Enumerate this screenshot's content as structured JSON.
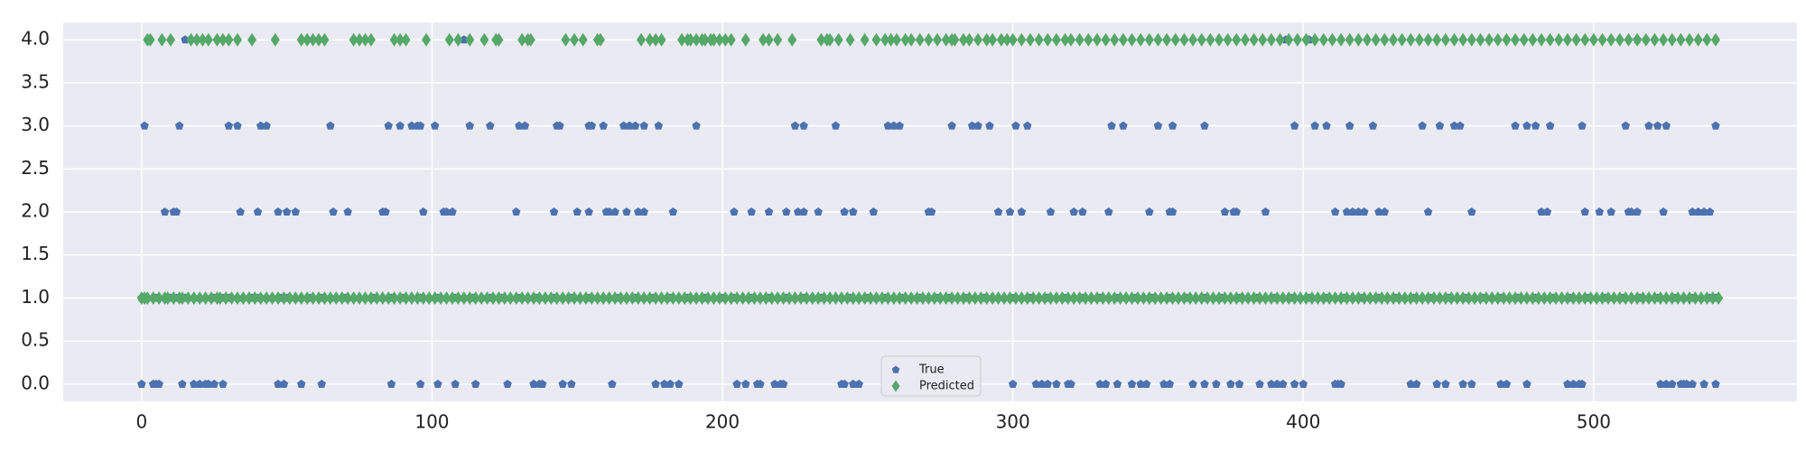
{
  "chart_data": {
    "type": "scatter",
    "title": "",
    "xlabel": "",
    "ylabel": "",
    "xlim": [
      -27,
      570
    ],
    "ylim": [
      -0.2,
      4.2
    ],
    "x_ticks": [
      0,
      100,
      200,
      300,
      400,
      500
    ],
    "x_tick_labels": [
      "0",
      "100",
      "200",
      "300",
      "400",
      "500"
    ],
    "y_ticks": [
      0.0,
      0.5,
      1.0,
      1.5,
      2.0,
      2.5,
      3.0,
      3.5,
      4.0
    ],
    "y_tick_labels": [
      "0.0",
      "0.5",
      "1.0",
      "1.5",
      "2.0",
      "2.5",
      "3.0",
      "3.5",
      "4.0"
    ],
    "grid": true,
    "legend_position": "bottom-center",
    "background_color": "#eaeaf2",
    "grid_color": "#ffffff",
    "series": [
      {
        "name": "True",
        "marker": "pentagon",
        "color": "#4c72b0",
        "points": {
          "4": [
            15,
            111,
            394,
            402,
            515
          ],
          "3": [
            1,
            13,
            30,
            33,
            41,
            43,
            65,
            85,
            89,
            93,
            95,
            96,
            101,
            113,
            120,
            130,
            132,
            143,
            144,
            154,
            155,
            159,
            166,
            168,
            170,
            173,
            178,
            191,
            225,
            228,
            239,
            257,
            259,
            261,
            279,
            286,
            288,
            292,
            301,
            305,
            334,
            338,
            350,
            355,
            366,
            397,
            404,
            408,
            416,
            424,
            441,
            447,
            452,
            454,
            473,
            477,
            480,
            485,
            496,
            511,
            519,
            522,
            525,
            542
          ],
          "2": [
            8,
            11,
            12,
            34,
            40,
            47,
            50,
            53,
            66,
            71,
            83,
            84,
            97,
            104,
            105,
            107,
            129,
            142,
            150,
            154,
            160,
            161,
            163,
            167,
            171,
            173,
            183,
            204,
            210,
            216,
            222,
            226,
            228,
            233,
            242,
            245,
            252,
            271,
            272,
            295,
            299,
            303,
            313,
            321,
            324,
            333,
            347,
            354,
            355,
            373,
            376,
            377,
            387,
            411,
            415,
            417,
            419,
            421,
            426,
            428,
            443,
            458,
            482,
            484,
            497,
            502,
            506,
            512,
            513,
            515,
            524,
            534,
            536,
            538,
            540
          ],
          "1": [
            0,
            2,
            5,
            8,
            10,
            12,
            15,
            18,
            20,
            22,
            25,
            28,
            30,
            33,
            35,
            38,
            40,
            43,
            45,
            48,
            50,
            53,
            55,
            58,
            62,
            65,
            67,
            70,
            73,
            77,
            80,
            83,
            86,
            90,
            93,
            96,
            99,
            102,
            105,
            108,
            111,
            114,
            117,
            120,
            124,
            127,
            130,
            133,
            136,
            139,
            142,
            145,
            148,
            151,
            154,
            157,
            161,
            164,
            167,
            170,
            173,
            176,
            179,
            182,
            185,
            188,
            191,
            194,
            197,
            200,
            204,
            207,
            210,
            213,
            216,
            219,
            222,
            225,
            228,
            231,
            234,
            237,
            241,
            244,
            247,
            250,
            253,
            256,
            259,
            262,
            265,
            268,
            271,
            274,
            278,
            281,
            284,
            287,
            290,
            293,
            297,
            300,
            303,
            306,
            309,
            312,
            315,
            318,
            321,
            324,
            327,
            330,
            333,
            336,
            339,
            342,
            345,
            348,
            351,
            354,
            357,
            360,
            363,
            366,
            369,
            372,
            375,
            378,
            381,
            384,
            387,
            390,
            393,
            396,
            399,
            402,
            405,
            408,
            411,
            414,
            417,
            420,
            423,
            426,
            429,
            432,
            435,
            438,
            441,
            444,
            447,
            450,
            453,
            456,
            459,
            462,
            465,
            468,
            471,
            474,
            477,
            480,
            483,
            486,
            489,
            492,
            495,
            498,
            501,
            504,
            507,
            510,
            513,
            516,
            519,
            522,
            525,
            528,
            531,
            534,
            537,
            540,
            542
          ],
          "0": [
            0,
            4,
            5,
            6,
            14,
            18,
            20,
            22,
            23,
            25,
            28,
            47,
            49,
            55,
            62,
            86,
            96,
            102,
            108,
            115,
            126,
            135,
            137,
            138,
            145,
            148,
            162,
            177,
            180,
            182,
            185,
            205,
            208,
            212,
            213,
            218,
            220,
            221,
            241,
            242,
            245,
            247,
            300,
            308,
            310,
            312,
            315,
            319,
            320,
            330,
            332,
            336,
            341,
            344,
            346,
            352,
            354,
            362,
            366,
            370,
            375,
            378,
            385,
            389,
            391,
            393,
            397,
            400,
            411,
            412,
            413,
            437,
            439,
            446,
            449,
            455,
            458,
            468,
            470,
            477,
            491,
            493,
            495,
            496,
            523,
            525,
            527,
            530,
            531,
            532,
            534,
            538,
            542
          ]
        }
      },
      {
        "name": "Predicted",
        "marker": "diamond",
        "color": "#55a868",
        "points": {
          "4": [
            2,
            3,
            7,
            10,
            17,
            19,
            21,
            23,
            26,
            28,
            30,
            33,
            38,
            46,
            55,
            57,
            59,
            61,
            63,
            73,
            75,
            77,
            79,
            87,
            89,
            91,
            98,
            106,
            109,
            113,
            118,
            122,
            123,
            131,
            133,
            134,
            146,
            149,
            152,
            157,
            158,
            172,
            175,
            177,
            179,
            186,
            188,
            189,
            191,
            193,
            194,
            196,
            197,
            199,
            201,
            203,
            208,
            214,
            216,
            219,
            224,
            234,
            236,
            237,
            240,
            244,
            249,
            253,
            256,
            258,
            260,
            263,
            265,
            268,
            271,
            274,
            277,
            279,
            280,
            283,
            285,
            288,
            291,
            293,
            296,
            298,
            300,
            303,
            306,
            309,
            312,
            315,
            318,
            320,
            323,
            326,
            329,
            332,
            335,
            338,
            341,
            344,
            347,
            350,
            353,
            356,
            359,
            362,
            365,
            368,
            371,
            374,
            377,
            380,
            383,
            386,
            389,
            392,
            395,
            398,
            401,
            404,
            407,
            410,
            413,
            416,
            419,
            422,
            425,
            428,
            431,
            434,
            437,
            440,
            443,
            446,
            449,
            452,
            455,
            458,
            461,
            464,
            467,
            470,
            473,
            476,
            479,
            482,
            485,
            488,
            491,
            494,
            497,
            500,
            503,
            506,
            509,
            512,
            515,
            518,
            521,
            524,
            527,
            530,
            533,
            536,
            539,
            542
          ],
          "1": [
            0,
            1,
            2,
            4,
            6,
            8,
            9,
            11,
            13,
            14,
            16,
            18,
            20,
            22,
            24,
            26,
            27,
            29,
            31,
            33,
            35,
            37,
            39,
            41,
            43,
            45,
            47,
            49,
            51,
            53,
            55,
            57,
            59,
            61,
            63,
            65,
            67,
            69,
            71,
            73,
            75,
            77,
            79,
            81,
            83,
            85,
            87,
            89,
            91,
            93,
            95,
            97,
            99,
            101,
            103,
            105,
            107,
            109,
            111,
            113,
            115,
            117,
            119,
            121,
            123,
            125,
            127,
            129,
            131,
            133,
            135,
            137,
            139,
            141,
            143,
            145,
            147,
            149,
            151,
            153,
            155,
            157,
            159,
            161,
            163,
            165,
            167,
            169,
            171,
            173,
            175,
            177,
            179,
            181,
            183,
            185,
            187,
            189,
            191,
            193,
            195,
            197,
            199,
            201,
            203,
            205,
            207,
            209,
            211,
            213,
            215,
            217,
            219,
            221,
            223,
            225,
            227,
            229,
            231,
            233,
            235,
            237,
            239,
            241,
            243,
            245,
            247,
            249,
            251,
            253,
            255,
            257,
            259,
            261,
            263,
            265,
            267,
            269,
            271,
            273,
            275,
            277,
            279,
            281,
            283,
            285,
            287,
            289,
            291,
            293,
            295,
            297,
            299,
            301,
            303,
            305,
            307,
            309,
            311,
            313,
            315,
            317,
            319,
            321,
            323,
            325,
            327,
            329,
            331,
            333,
            335,
            337,
            339,
            341,
            343,
            345,
            347,
            349,
            351,
            353,
            355,
            357,
            359,
            361,
            363,
            365,
            367,
            369,
            371,
            373,
            375,
            377,
            379,
            381,
            383,
            385,
            387,
            389,
            391,
            393,
            395,
            397,
            399,
            401,
            403,
            405,
            407,
            409,
            411,
            413,
            415,
            417,
            419,
            421,
            423,
            425,
            427,
            429,
            431,
            433,
            435,
            437,
            439,
            441,
            443,
            445,
            447,
            449,
            451,
            453,
            455,
            457,
            459,
            461,
            463,
            465,
            467,
            469,
            471,
            473,
            475,
            477,
            479,
            481,
            483,
            485,
            487,
            489,
            491,
            493,
            495,
            497,
            499,
            501,
            503,
            505,
            507,
            509,
            511,
            513,
            515,
            517,
            519,
            521,
            523,
            525,
            527,
            529,
            531,
            533,
            535,
            537,
            539,
            541,
            543
          ]
        }
      }
    ]
  }
}
